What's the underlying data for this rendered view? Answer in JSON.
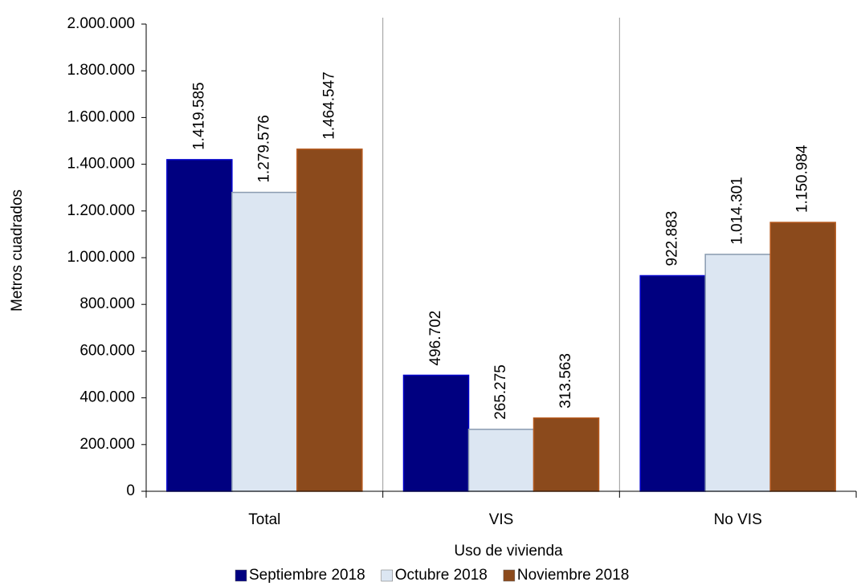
{
  "chart_data": {
    "type": "bar",
    "x_label": "Uso de vivienda",
    "y_label": "Metros cuadrados",
    "categories": [
      "Total",
      "VIS",
      "No VIS"
    ],
    "series": [
      {
        "name": "Septiembre 2018",
        "color": "#000080",
        "values": [
          1419585,
          496702,
          922883
        ],
        "value_labels": [
          "1.419.585",
          "496.702",
          "922.883"
        ]
      },
      {
        "name": "Octubre 2018",
        "color": "#dce6f2",
        "values": [
          1279576,
          265275,
          1014301
        ],
        "value_labels": [
          "1.279.576",
          "265.275",
          "1.014.301"
        ]
      },
      {
        "name": "Noviembre 2018",
        "color": "#8b4a1c",
        "values": [
          1464547,
          313563,
          1150984
        ],
        "value_labels": [
          "1.464.547",
          "313.563",
          "1.150.984"
        ]
      }
    ],
    "ylim": [
      0,
      2000000
    ],
    "yticks": [
      0,
      {
        "value": 200000,
        "label": "200.000"
      },
      {
        "value": 400000,
        "label": "400.000"
      },
      {
        "value": 600000,
        "label": "600.000"
      },
      {
        "value": 800000,
        "label": "800.000"
      },
      {
        "value": 1000000,
        "label": "1.000.000"
      },
      {
        "value": 1200000,
        "label": "1.200.000"
      },
      {
        "value": 1400000,
        "label": "1.400.000"
      },
      {
        "value": 1600000,
        "label": "1.600.000"
      },
      {
        "value": 1800000,
        "label": "1.800.000"
      },
      {
        "value": 2000000,
        "label": "2.000.000"
      }
    ],
    "legend": "bottom"
  }
}
